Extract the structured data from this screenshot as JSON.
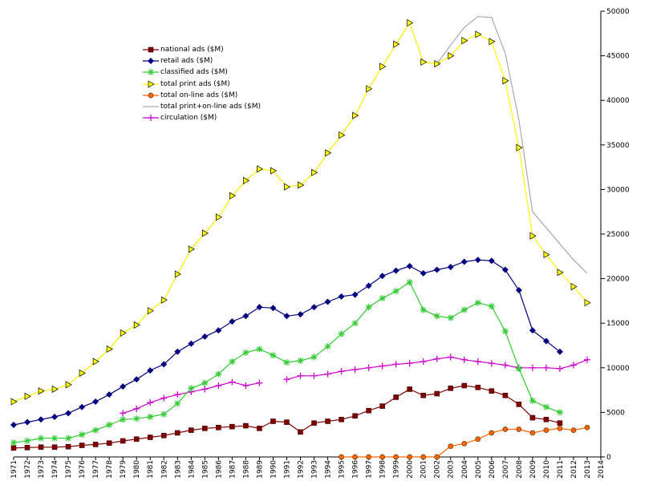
{
  "chart_data": {
    "type": "line",
    "title": "",
    "xlabel": "",
    "ylabel": "",
    "x": [
      1971,
      1972,
      1973,
      1974,
      1975,
      1976,
      1977,
      1978,
      1979,
      1980,
      1981,
      1982,
      1983,
      1984,
      1985,
      1986,
      1987,
      1988,
      1989,
      1990,
      1991,
      1992,
      1993,
      1994,
      1995,
      1996,
      1997,
      1998,
      1999,
      2000,
      2001,
      2002,
      2003,
      2004,
      2005,
      2006,
      2007,
      2008,
      2009,
      2010,
      2011,
      2012,
      2013,
      2014
    ],
    "xlim": [
      1971,
      2014
    ],
    "ylim": [
      0,
      50000
    ],
    "yticks": [
      0,
      5000,
      10000,
      15000,
      20000,
      25000,
      30000,
      35000,
      40000,
      45000,
      50000
    ],
    "y_axis_side": "right",
    "legend_position": "top-left",
    "series": [
      {
        "name": "national ads ($M)",
        "color": "#800000",
        "marker": "square",
        "values": [
          1000,
          1050,
          1100,
          1100,
          1150,
          1300,
          1400,
          1550,
          1800,
          2000,
          2200,
          2400,
          2700,
          3000,
          3200,
          3300,
          3400,
          3500,
          3200,
          4000,
          3900,
          2800,
          3800,
          4000,
          4200,
          4600,
          5200,
          5700,
          6700,
          7600,
          6900,
          7100,
          7700,
          8000,
          7800,
          7400,
          6900,
          5900,
          4400,
          4200,
          3800,
          null,
          null,
          null
        ]
      },
      {
        "name": "retail ads ($M)",
        "color": "#000080",
        "marker": "diamond",
        "values": [
          3600,
          3900,
          4200,
          4500,
          4900,
          5600,
          6200,
          7000,
          7900,
          8700,
          9700,
          10400,
          11800,
          12700,
          13500,
          14200,
          15200,
          15800,
          16800,
          16700,
          15800,
          16000,
          16800,
          17400,
          18000,
          18200,
          19200,
          20300,
          20900,
          21400,
          20600,
          21000,
          21300,
          21900,
          22100,
          22000,
          21000,
          18700,
          14200,
          13000,
          11800,
          null,
          null,
          null
        ]
      },
      {
        "name": "classified ads ($M)",
        "color": "#33cc33",
        "marker": "asterisk",
        "values": [
          1600,
          1800,
          2100,
          2100,
          2100,
          2500,
          3000,
          3600,
          4200,
          4300,
          4500,
          4800,
          6000,
          7700,
          8300,
          9300,
          10700,
          11700,
          12100,
          11400,
          10600,
          10800,
          11200,
          12400,
          13800,
          15000,
          16800,
          17800,
          18600,
          19600,
          16500,
          15800,
          15600,
          16500,
          17300,
          16900,
          14100,
          9900,
          6300,
          5600,
          5000,
          null,
          null,
          null
        ]
      },
      {
        "name": "total print ads ($M)",
        "color": "#ffff00",
        "marker": "triangle",
        "values": [
          6200,
          6800,
          7400,
          7600,
          8100,
          9400,
          10700,
          12100,
          13900,
          14800,
          16400,
          17600,
          20500,
          23300,
          25100,
          26900,
          29300,
          31000,
          32300,
          32100,
          30300,
          30500,
          31900,
          34100,
          36100,
          38300,
          41300,
          43800,
          46300,
          48700,
          44300,
          44100,
          45000,
          46700,
          47400,
          46600,
          42200,
          34700,
          24800,
          22700,
          20700,
          19100,
          17300,
          null
        ]
      },
      {
        "name": "total on-line ads ($M)",
        "color": "#ff6600",
        "marker": "circle",
        "values": [
          null,
          null,
          null,
          null,
          null,
          null,
          null,
          null,
          null,
          null,
          null,
          null,
          null,
          null,
          null,
          null,
          null,
          null,
          null,
          null,
          null,
          null,
          null,
          null,
          0,
          0,
          0,
          0,
          0,
          0,
          0,
          0,
          1200,
          1500,
          2000,
          2700,
          3100,
          3100,
          2700,
          3000,
          3200,
          3000,
          3300,
          null
        ]
      },
      {
        "name": "total print+on-line ads ($M)",
        "color": "#aaaaaa",
        "marker": "none",
        "values": [
          6200,
          6800,
          7400,
          7600,
          8100,
          9400,
          10700,
          12100,
          13900,
          14800,
          16400,
          17600,
          20500,
          23300,
          25100,
          26900,
          29300,
          31000,
          32300,
          32100,
          30300,
          30500,
          31900,
          34100,
          36100,
          38300,
          41300,
          43800,
          46300,
          48700,
          44300,
          44100,
          46200,
          48200,
          49400,
          49300,
          45300,
          37800,
          27500,
          25700,
          23900,
          22100,
          20600,
          null
        ]
      },
      {
        "name": "circulation ($M)",
        "color": "#cc00cc",
        "marker": "plus",
        "values": [
          null,
          null,
          null,
          null,
          null,
          null,
          null,
          null,
          4900,
          5400,
          6100,
          6600,
          7000,
          7300,
          7600,
          8000,
          8400,
          8000,
          8300,
          null,
          8700,
          9100,
          9100,
          9300,
          9600,
          9800,
          10000,
          10200,
          10400,
          10500,
          10700,
          11000,
          11200,
          10900,
          10700,
          10500,
          10300,
          10000,
          10000,
          10000,
          9900,
          10300,
          10900,
          null
        ]
      }
    ]
  }
}
